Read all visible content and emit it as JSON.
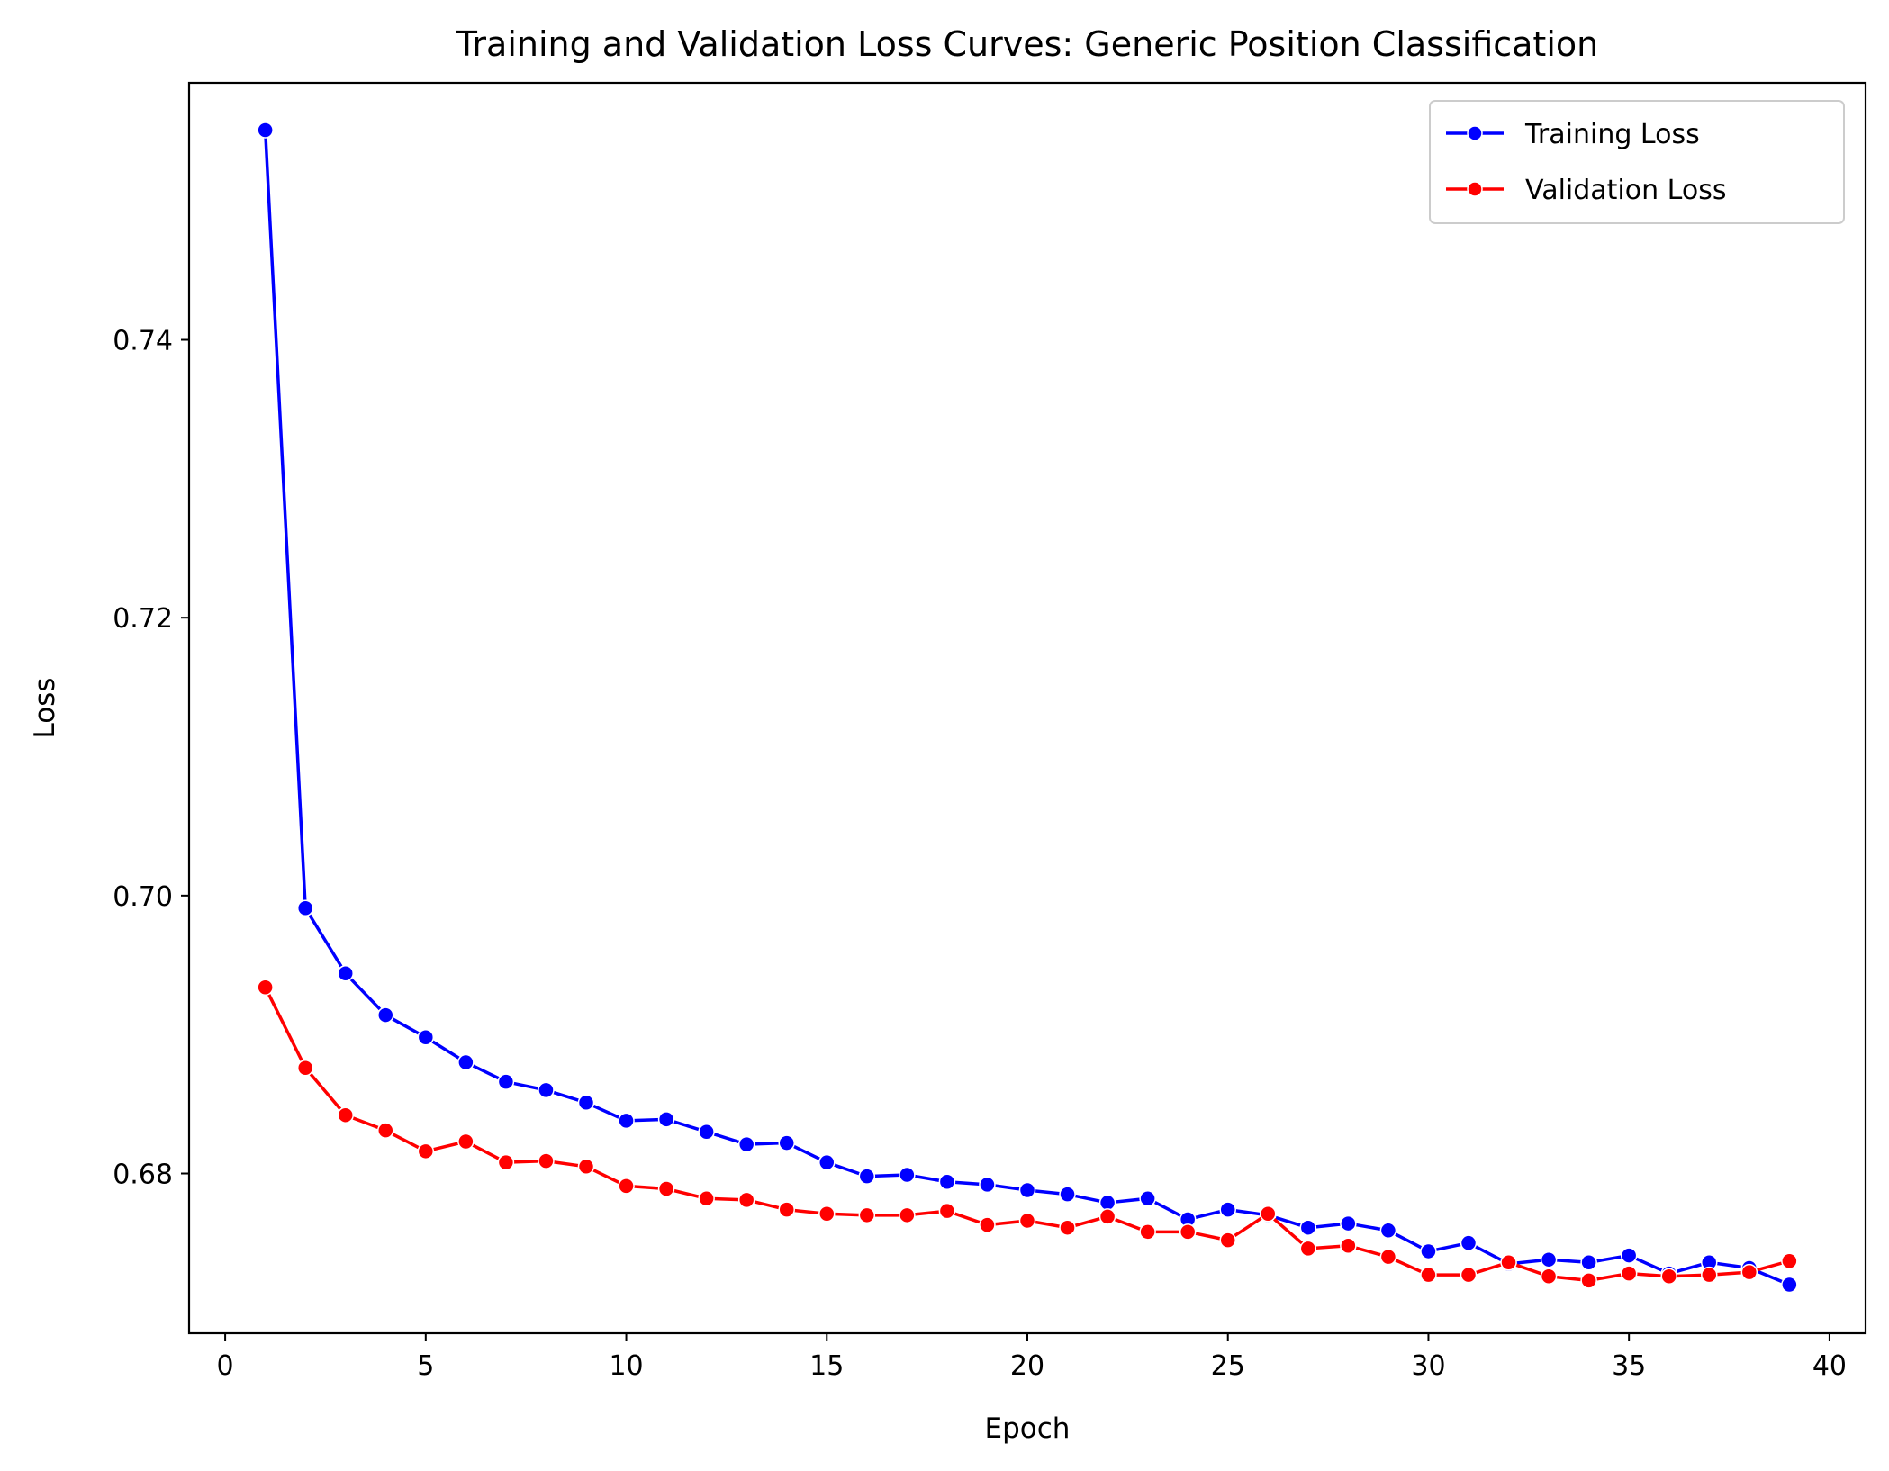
{
  "chart_data": {
    "type": "line",
    "title": "Training and Validation Loss Curves: Generic Position Classification",
    "xlabel": "Epoch",
    "ylabel": "Loss",
    "xlim": [
      -0.9,
      40.9
    ],
    "ylim": [
      0.6685,
      0.7585
    ],
    "xticks": [
      0,
      5,
      10,
      15,
      20,
      25,
      30,
      35,
      40
    ],
    "yticks": [
      0.68,
      0.7,
      0.72,
      0.74
    ],
    "ytick_labels": [
      "0.68",
      "0.70",
      "0.72",
      "0.74"
    ],
    "grid": false,
    "legend_position": "top-right",
    "x": [
      1,
      2,
      3,
      4,
      5,
      6,
      7,
      8,
      9,
      10,
      11,
      12,
      13,
      14,
      15,
      16,
      17,
      18,
      19,
      20,
      21,
      22,
      23,
      24,
      25,
      26,
      27,
      28,
      29,
      30,
      31,
      32,
      33,
      34,
      35,
      36,
      37,
      38,
      39
    ],
    "series": [
      {
        "name": "Training Loss",
        "color": "#0000ff",
        "values": [
          0.7551,
          0.6991,
          0.6944,
          0.6914,
          0.6898,
          0.688,
          0.6866,
          0.686,
          0.6851,
          0.6838,
          0.6839,
          0.683,
          0.6821,
          0.6822,
          0.6808,
          0.6798,
          0.6799,
          0.6794,
          0.6792,
          0.6788,
          0.6785,
          0.6779,
          0.6782,
          0.6767,
          0.6774,
          0.677,
          0.6761,
          0.6764,
          0.6759,
          0.6744,
          0.675,
          0.6735,
          0.6738,
          0.6736,
          0.6741,
          0.6728,
          0.6736,
          0.6732,
          0.672
        ]
      },
      {
        "name": "Validation Loss",
        "color": "#ff0000",
        "values": [
          0.6934,
          0.6876,
          0.6842,
          0.6831,
          0.6816,
          0.6823,
          0.6808,
          0.6809,
          0.6805,
          0.6791,
          0.6789,
          0.6782,
          0.6781,
          0.6774,
          0.6771,
          0.677,
          0.677,
          0.6773,
          0.6763,
          0.6766,
          0.6761,
          0.6769,
          0.6758,
          0.6758,
          0.6752,
          0.6771,
          0.6746,
          0.6748,
          0.674,
          0.6727,
          0.6727,
          0.6736,
          0.6726,
          0.6723,
          0.6728,
          0.6726,
          0.6727,
          0.6729,
          0.6737
        ]
      }
    ]
  }
}
